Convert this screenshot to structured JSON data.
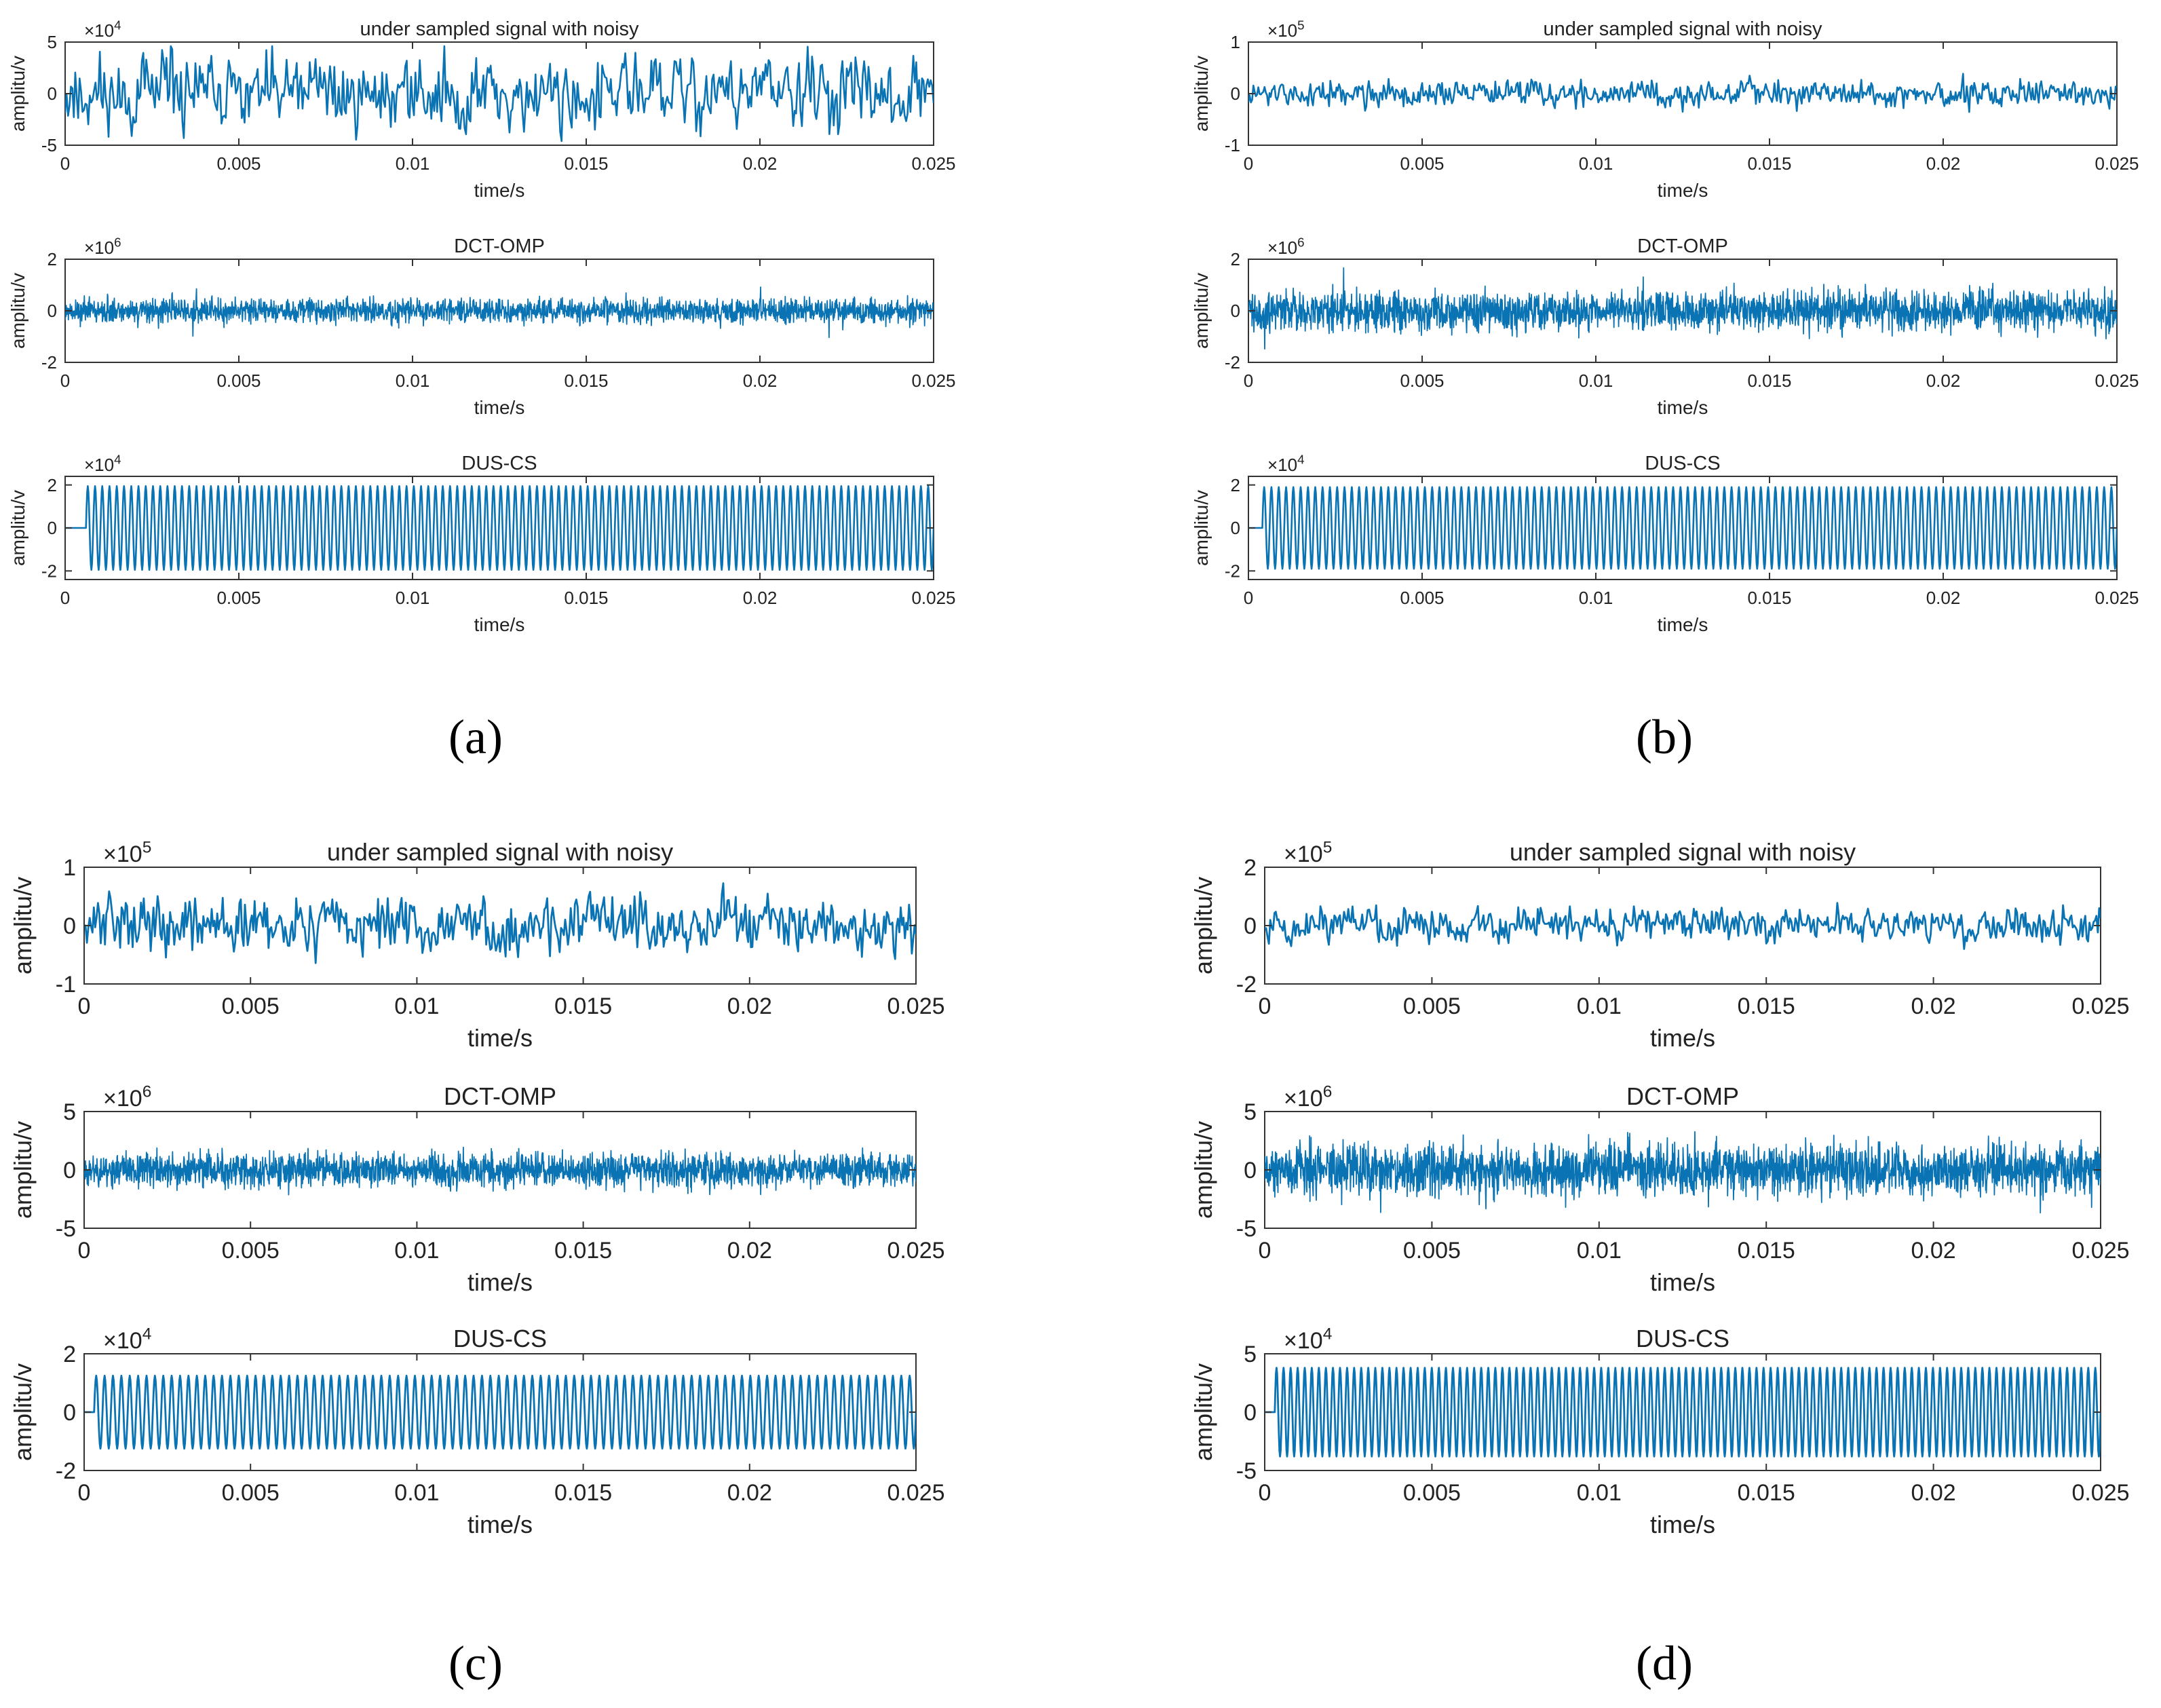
{
  "figure": {
    "panels": [
      {
        "id": "a",
        "label": "(a)",
        "label_letter": "a"
      },
      {
        "id": "b",
        "label": "(b)",
        "label_letter": "b"
      },
      {
        "id": "c",
        "label": "(c)",
        "label_letter": "c"
      },
      {
        "id": "d",
        "label": "(d)",
        "label_letter": "d"
      }
    ]
  },
  "colors": {
    "signal": "#0a73b3",
    "axes": "#333333",
    "text": "#222222"
  },
  "chart_data": [
    {
      "panel": "a",
      "type": "line",
      "title": "under sampled signal with noisy",
      "xlabel": "time/s",
      "ylabel": "amplitu/v",
      "multiplier": "×10",
      "exponent": "4",
      "xlim": [
        0,
        0.025
      ],
      "ylim": [
        -5,
        5
      ],
      "yticks": [
        -5,
        0,
        5
      ],
      "xticks": [
        0,
        0.005,
        0.01,
        0.015,
        0.02,
        0.025
      ],
      "xtick_labels": [
        "0",
        "0.005",
        "0.01",
        "0.015",
        "0.02",
        "0.025"
      ],
      "signal": {
        "kind": "noisy",
        "amplitude": 2.0,
        "spread": 1.2,
        "samples": 600,
        "seed": 11,
        "lead": 0
      }
    },
    {
      "panel": "a",
      "type": "line",
      "title": "DCT-OMP",
      "xlabel": "time/s",
      "ylabel": "amplitu/v",
      "multiplier": "×10",
      "exponent": "6",
      "xlim": [
        0,
        0.025
      ],
      "ylim": [
        -2,
        2
      ],
      "yticks": [
        -2,
        0,
        2
      ],
      "xticks": [
        0,
        0.005,
        0.01,
        0.015,
        0.02,
        0.025
      ],
      "xtick_labels": [
        "0",
        "0.005",
        "0.01",
        "0.015",
        "0.02",
        "0.025"
      ],
      "signal": {
        "kind": "dense",
        "amplitude": 0.45,
        "spread": 0.9,
        "samples": 2400,
        "seed": 21,
        "lead": 0
      }
    },
    {
      "panel": "a",
      "type": "line",
      "title": "DUS-CS",
      "xlabel": "time/s",
      "ylabel": "amplitu/v",
      "multiplier": "×10",
      "exponent": "4",
      "xlim": [
        0,
        0.025
      ],
      "ylim": [
        -2.4,
        2.4
      ],
      "yticks": [
        -2,
        0,
        2
      ],
      "xticks": [
        0,
        0.005,
        0.01,
        0.015,
        0.02,
        0.025
      ],
      "xtick_labels": [
        "0",
        "0.005",
        "0.01",
        "0.015",
        "0.02",
        "0.025"
      ],
      "signal": {
        "kind": "sine",
        "amplitude": 1.95,
        "cycles": 117,
        "samples": 0,
        "seed": 31,
        "lead": 0.0006
      }
    },
    {
      "panel": "b",
      "type": "line",
      "title": "under sampled signal with noisy",
      "xlabel": "time/s",
      "ylabel": "amplitu/v",
      "multiplier": "×10",
      "exponent": "5",
      "xlim": [
        0,
        0.025
      ],
      "ylim": [
        -1,
        1
      ],
      "yticks": [
        -1,
        0,
        1
      ],
      "xticks": [
        0,
        0.005,
        0.01,
        0.015,
        0.02,
        0.025
      ],
      "xtick_labels": [
        "0",
        "0.005",
        "0.01",
        "0.015",
        "0.02",
        "0.025"
      ],
      "signal": {
        "kind": "noisy",
        "amplitude": 0.18,
        "spread": 0.9,
        "samples": 700,
        "seed": 12,
        "lead": 0
      }
    },
    {
      "panel": "b",
      "type": "line",
      "title": "DCT-OMP",
      "xlabel": "time/s",
      "ylabel": "amplitu/v",
      "multiplier": "×10",
      "exponent": "6",
      "xlim": [
        0,
        0.025
      ],
      "ylim": [
        -2,
        2
      ],
      "yticks": [
        -2,
        0,
        2
      ],
      "xticks": [
        0,
        0.005,
        0.01,
        0.015,
        0.02,
        0.025
      ],
      "xtick_labels": [
        "0",
        "0.005",
        "0.01",
        "0.015",
        "0.02",
        "0.025"
      ],
      "signal": {
        "kind": "dense",
        "amplitude": 0.65,
        "spread": 1.0,
        "samples": 2400,
        "seed": 22,
        "lead": 0
      }
    },
    {
      "panel": "b",
      "type": "line",
      "title": "DUS-CS",
      "xlabel": "time/s",
      "ylabel": "amplitu/v",
      "multiplier": "×10",
      "exponent": "4",
      "xlim": [
        0,
        0.025
      ],
      "ylim": [
        -2.4,
        2.4
      ],
      "yticks": [
        -2,
        0,
        2
      ],
      "xticks": [
        0,
        0.005,
        0.01,
        0.015,
        0.02,
        0.025
      ],
      "xtick_labels": [
        "0",
        "0.005",
        "0.01",
        "0.015",
        "0.02",
        "0.025"
      ],
      "signal": {
        "kind": "sine",
        "amplitude": 1.9,
        "cycles": 117,
        "samples": 0,
        "seed": 32,
        "lead": 0.0004
      }
    },
    {
      "panel": "c",
      "type": "line",
      "title": "under sampled signal with noisy",
      "xlabel": "time/s",
      "ylabel": "amplitu/v",
      "multiplier": "×10",
      "exponent": "5",
      "xlim": [
        0,
        0.025
      ],
      "ylim": [
        -1,
        1
      ],
      "yticks": [
        -1,
        0,
        1
      ],
      "xticks": [
        0,
        0.005,
        0.01,
        0.015,
        0.02,
        0.025
      ],
      "xtick_labels": [
        "0",
        "0.005",
        "0.01",
        "0.015",
        "0.02",
        "0.025"
      ],
      "signal": {
        "kind": "noisy",
        "amplitude": 0.3,
        "spread": 1.0,
        "samples": 600,
        "seed": 13,
        "lead": 0
      }
    },
    {
      "panel": "c",
      "type": "line",
      "title": "DCT-OMP",
      "xlabel": "time/s",
      "ylabel": "amplitu/v",
      "multiplier": "×10",
      "exponent": "6",
      "xlim": [
        0,
        0.025
      ],
      "ylim": [
        -5,
        5
      ],
      "yticks": [
        -5,
        0,
        5
      ],
      "xticks": [
        0,
        0.005,
        0.01,
        0.015,
        0.02,
        0.025
      ],
      "xtick_labels": [
        "0",
        "0.005",
        "0.01",
        "0.015",
        "0.02",
        "0.025"
      ],
      "signal": {
        "kind": "dense",
        "amplitude": 0.55,
        "spread": 0.9,
        "samples": 2400,
        "seed": 23,
        "lead": 0
      }
    },
    {
      "panel": "c",
      "type": "line",
      "title": "DUS-CS",
      "xlabel": "time/s",
      "ylabel": "amplitu/v",
      "multiplier": "×10",
      "exponent": "4",
      "xlim": [
        0,
        0.025
      ],
      "ylim": [
        -2,
        2
      ],
      "yticks": [
        -2,
        0,
        2
      ],
      "xticks": [
        0,
        0.005,
        0.01,
        0.015,
        0.02,
        0.025
      ],
      "xtick_labels": [
        "0",
        "0.005",
        "0.01",
        "0.015",
        "0.02",
        "0.025"
      ],
      "signal": {
        "kind": "sine",
        "amplitude": 1.25,
        "cycles": 98,
        "samples": 0,
        "seed": 33,
        "lead": 0.0003
      }
    },
    {
      "panel": "d",
      "type": "line",
      "title": "under sampled signal with noisy",
      "xlabel": "time/s",
      "ylabel": "amplitu/v",
      "multiplier": "×10",
      "exponent": "5",
      "xlim": [
        0,
        0.025
      ],
      "ylim": [
        -2,
        2
      ],
      "yticks": [
        -2,
        0,
        2
      ],
      "xticks": [
        0,
        0.005,
        0.01,
        0.015,
        0.02,
        0.025
      ],
      "xtick_labels": [
        "0",
        "0.005",
        "0.01",
        "0.015",
        "0.02",
        "0.025"
      ],
      "signal": {
        "kind": "noisy",
        "amplitude": 0.38,
        "spread": 1.0,
        "samples": 600,
        "seed": 14,
        "lead": 0
      }
    },
    {
      "panel": "d",
      "type": "line",
      "title": "DCT-OMP",
      "xlabel": "time/s",
      "ylabel": "amplitu/v",
      "multiplier": "×10",
      "exponent": "6",
      "xlim": [
        0,
        0.025
      ],
      "ylim": [
        -5,
        5
      ],
      "yticks": [
        -5,
        0,
        5
      ],
      "xticks": [
        0,
        0.005,
        0.01,
        0.015,
        0.02,
        0.025
      ],
      "xtick_labels": [
        "0",
        "0.005",
        "0.01",
        "0.015",
        "0.02",
        "0.025"
      ],
      "signal": {
        "kind": "dense",
        "amplitude": 0.75,
        "spread": 1.0,
        "samples": 2400,
        "seed": 24,
        "lead": 0
      }
    },
    {
      "panel": "d",
      "type": "line",
      "title": "DUS-CS",
      "xlabel": "time/s",
      "ylabel": "amplitu/v",
      "multiplier": "×10",
      "exponent": "4",
      "xlim": [
        0,
        0.025
      ],
      "ylim": [
        -5,
        5
      ],
      "yticks": [
        -5,
        0,
        5
      ],
      "xticks": [
        0,
        0.005,
        0.01,
        0.015,
        0.02,
        0.025
      ],
      "xtick_labels": [
        "0",
        "0.005",
        "0.01",
        "0.015",
        "0.02",
        "0.025"
      ],
      "signal": {
        "kind": "sine",
        "amplitude": 3.8,
        "cycles": 117,
        "samples": 0,
        "seed": 34,
        "lead": 0.0003
      }
    }
  ]
}
